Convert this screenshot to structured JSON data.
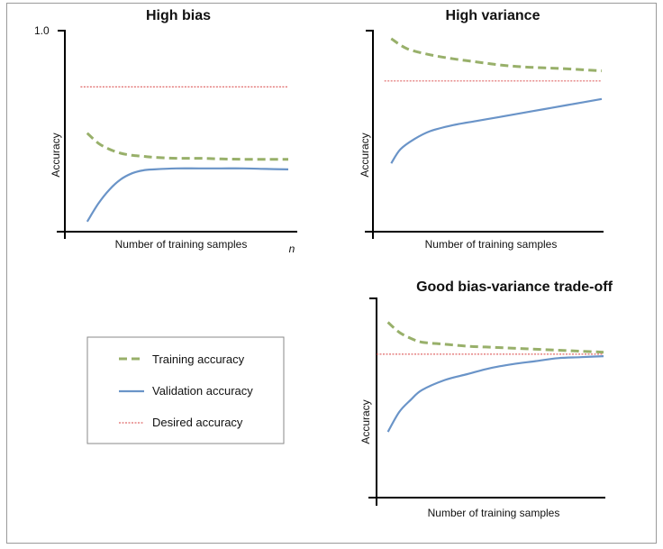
{
  "chart_data": [
    {
      "type": "line",
      "title": "High bias",
      "xlabel": "Number of training samples",
      "ylabel": "Accuracy",
      "x_end_label": "n",
      "y_tick_label": "1.0",
      "ylim": [
        0,
        1
      ],
      "xlim": [
        0,
        1
      ],
      "series": [
        {
          "key": "training",
          "x": [
            0.1,
            0.15,
            0.2,
            0.25,
            0.3,
            0.35,
            0.4,
            0.5,
            0.6,
            0.7,
            0.8,
            0.9,
            1.0
          ],
          "y": [
            0.49,
            0.44,
            0.41,
            0.39,
            0.38,
            0.375,
            0.37,
            0.365,
            0.365,
            0.362,
            0.36,
            0.36,
            0.36
          ]
        },
        {
          "key": "validation",
          "x": [
            0.1,
            0.15,
            0.2,
            0.25,
            0.3,
            0.35,
            0.4,
            0.5,
            0.6,
            0.7,
            0.8,
            0.9,
            1.0
          ],
          "y": [
            0.05,
            0.14,
            0.21,
            0.26,
            0.29,
            0.305,
            0.31,
            0.315,
            0.315,
            0.315,
            0.315,
            0.312,
            0.31
          ]
        },
        {
          "key": "desired",
          "x": [
            0.07,
            1.0
          ],
          "y": [
            0.72,
            0.72
          ]
        }
      ]
    },
    {
      "type": "line",
      "title": "High variance",
      "xlabel": "Number of training samples",
      "ylabel": "Accuracy",
      "ylim": [
        0,
        1
      ],
      "xlim": [
        0,
        1
      ],
      "series": [
        {
          "key": "training",
          "x": [
            0.08,
            0.15,
            0.25,
            0.35,
            0.45,
            0.55,
            0.65,
            0.75,
            0.85,
            1.0
          ],
          "y": [
            0.96,
            0.91,
            0.88,
            0.86,
            0.845,
            0.83,
            0.82,
            0.815,
            0.81,
            0.8
          ]
        },
        {
          "key": "validation",
          "x": [
            0.08,
            0.12,
            0.18,
            0.25,
            0.35,
            0.45,
            0.55,
            0.65,
            0.75,
            0.85,
            1.0
          ],
          "y": [
            0.34,
            0.41,
            0.46,
            0.5,
            0.53,
            0.55,
            0.57,
            0.59,
            0.61,
            0.63,
            0.66
          ]
        },
        {
          "key": "desired",
          "x": [
            0.05,
            1.0
          ],
          "y": [
            0.75,
            0.75
          ]
        }
      ]
    },
    {
      "type": "line",
      "title": "Good bias-variance trade-off",
      "xlabel": "Number of training samples",
      "ylabel": "Accuracy",
      "ylim": [
        0,
        1
      ],
      "xlim": [
        0,
        1
      ],
      "series": [
        {
          "key": "training",
          "x": [
            0.05,
            0.1,
            0.15,
            0.2,
            0.3,
            0.4,
            0.5,
            0.6,
            0.7,
            0.8,
            0.9,
            1.0
          ],
          "y": [
            0.88,
            0.83,
            0.8,
            0.78,
            0.77,
            0.76,
            0.755,
            0.75,
            0.745,
            0.74,
            0.735,
            0.73
          ]
        },
        {
          "key": "validation",
          "x": [
            0.05,
            0.1,
            0.15,
            0.2,
            0.3,
            0.4,
            0.5,
            0.6,
            0.7,
            0.8,
            0.9,
            1.0
          ],
          "y": [
            0.33,
            0.43,
            0.49,
            0.54,
            0.59,
            0.62,
            0.65,
            0.67,
            0.685,
            0.7,
            0.705,
            0.71
          ]
        },
        {
          "key": "desired",
          "x": [
            0.0,
            1.0
          ],
          "y": [
            0.72,
            0.72
          ]
        }
      ]
    }
  ],
  "legend": {
    "items": [
      {
        "key": "training",
        "label": "Training accuracy"
      },
      {
        "key": "validation",
        "label": "Validation accuracy"
      },
      {
        "key": "desired",
        "label": "Desired accuracy"
      }
    ]
  },
  "colors": {
    "training": "#98b06a",
    "validation": "#6a94c8",
    "desired": "#e06a6a"
  }
}
